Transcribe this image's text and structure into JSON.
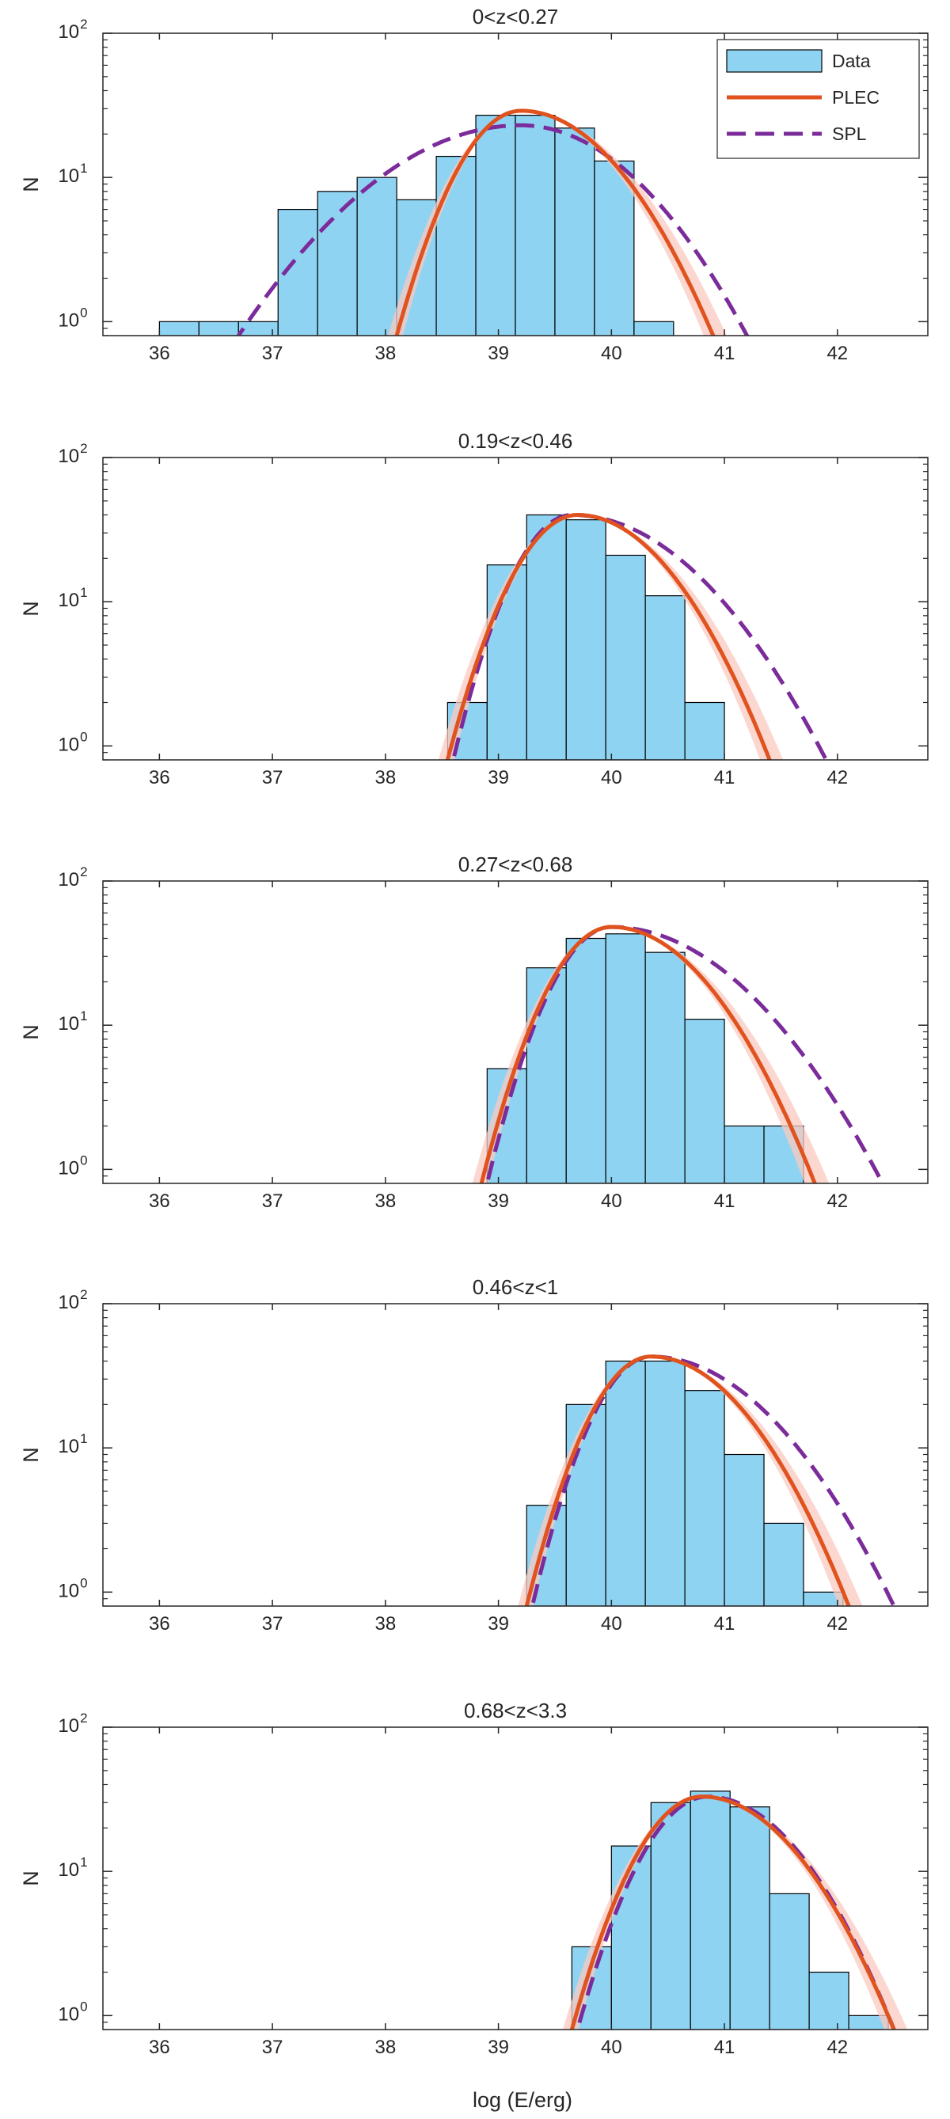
{
  "figure": {
    "xlabel": "log (E/erg)",
    "ylabel": "N",
    "legend": {
      "placement": "top-right",
      "entries": [
        {
          "key": "data",
          "label": "Data"
        },
        {
          "key": "plec",
          "label": "PLEC"
        },
        {
          "key": "spl",
          "label": "SPL"
        }
      ]
    }
  },
  "colors": {
    "bar_fill": "#8fd3f2",
    "bar_edge": "#000000",
    "plec": "#e0531f",
    "plec_band": "#f9c9c0",
    "spl": "#7b2c9a",
    "axis": "#262626"
  },
  "chart_data": [
    {
      "type": "bar",
      "title": "0<z<0.27",
      "xlabel": "log (E/erg)",
      "ylabel": "N",
      "yscale": "log",
      "xlim": [
        35.5,
        42.8
      ],
      "ylim": [
        0.8,
        100
      ],
      "xticks": [
        36,
        37,
        38,
        39,
        40,
        41,
        42
      ],
      "bin_width": 0.35,
      "bin_left_edges": [
        36.0,
        36.35,
        36.7,
        37.05,
        37.4,
        37.75,
        38.1,
        38.45,
        38.8,
        39.15,
        39.5,
        39.85,
        40.2,
        40.55
      ],
      "values": [
        1,
        1,
        1,
        6,
        8,
        10,
        7,
        14,
        27,
        27,
        22,
        13,
        1,
        0
      ],
      "plec": {
        "peak_x": 39.2,
        "peak_y": 29,
        "x_start": 38.1,
        "x_end": 40.9
      },
      "spl": {
        "peak_x": 39.2,
        "peak_y": 23,
        "x_start": 36.7,
        "x_end": 41.2
      }
    },
    {
      "type": "bar",
      "title": "0.19<z<0.46",
      "xlabel": "log (E/erg)",
      "ylabel": "N",
      "yscale": "log",
      "xlim": [
        35.5,
        42.8
      ],
      "ylim": [
        0.8,
        100
      ],
      "xticks": [
        36,
        37,
        38,
        39,
        40,
        41,
        42
      ],
      "bin_width": 0.35,
      "bin_left_edges": [
        38.55,
        38.9,
        39.25,
        39.6,
        39.95,
        40.3,
        40.65
      ],
      "values": [
        2,
        18,
        40,
        37,
        21,
        11,
        2
      ],
      "plec": {
        "peak_x": 39.7,
        "peak_y": 40,
        "x_start": 38.55,
        "x_end": 41.4
      },
      "spl": {
        "peak_x": 39.65,
        "peak_y": 40,
        "x_start": 38.6,
        "x_end": 41.9
      }
    },
    {
      "type": "bar",
      "title": "0.27<z<0.68",
      "xlabel": "log (E/erg)",
      "ylabel": "N",
      "yscale": "log",
      "xlim": [
        35.5,
        42.8
      ],
      "ylim": [
        0.8,
        100
      ],
      "xticks": [
        36,
        37,
        38,
        39,
        40,
        41,
        42
      ],
      "bin_width": 0.35,
      "bin_left_edges": [
        38.9,
        39.25,
        39.6,
        39.95,
        40.3,
        40.65,
        41.0,
        41.35
      ],
      "values": [
        5,
        25,
        40,
        43,
        32,
        11,
        2,
        2
      ],
      "plec": {
        "peak_x": 40.0,
        "peak_y": 48,
        "x_start": 38.85,
        "x_end": 41.8
      },
      "spl": {
        "peak_x": 40.0,
        "peak_y": 48,
        "x_start": 38.9,
        "x_end": 42.4
      }
    },
    {
      "type": "bar",
      "title": "0.46<z<1",
      "xlabel": "log (E/erg)",
      "ylabel": "N",
      "yscale": "log",
      "xlim": [
        35.5,
        42.8
      ],
      "ylim": [
        0.8,
        100
      ],
      "xticks": [
        36,
        37,
        38,
        39,
        40,
        41,
        42
      ],
      "bin_width": 0.35,
      "bin_left_edges": [
        39.25,
        39.6,
        39.95,
        40.3,
        40.65,
        41.0,
        41.35,
        41.7
      ],
      "values": [
        4,
        20,
        40,
        40,
        25,
        9,
        3,
        1
      ],
      "plec": {
        "peak_x": 40.35,
        "peak_y": 43,
        "x_start": 39.25,
        "x_end": 42.1
      },
      "spl": {
        "peak_x": 40.35,
        "peak_y": 43,
        "x_start": 39.3,
        "x_end": 42.5
      }
    },
    {
      "type": "bar",
      "title": "0.68<z<3.3",
      "xlabel": "log (E/erg)",
      "ylabel": "N",
      "yscale": "log",
      "xlim": [
        35.5,
        42.8
      ],
      "ylim": [
        0.8,
        100
      ],
      "xticks": [
        36,
        37,
        38,
        39,
        40,
        41,
        42
      ],
      "bin_width": 0.35,
      "bin_left_edges": [
        39.65,
        40.0,
        40.35,
        40.7,
        41.05,
        41.4,
        41.75,
        42.1
      ],
      "values": [
        3,
        15,
        30,
        36,
        28,
        7,
        2,
        1
      ],
      "plec": {
        "peak_x": 40.8,
        "peak_y": 33,
        "x_start": 39.65,
        "x_end": 42.5
      },
      "spl": {
        "peak_x": 40.85,
        "peak_y": 33,
        "x_start": 39.7,
        "x_end": 42.5
      }
    }
  ]
}
